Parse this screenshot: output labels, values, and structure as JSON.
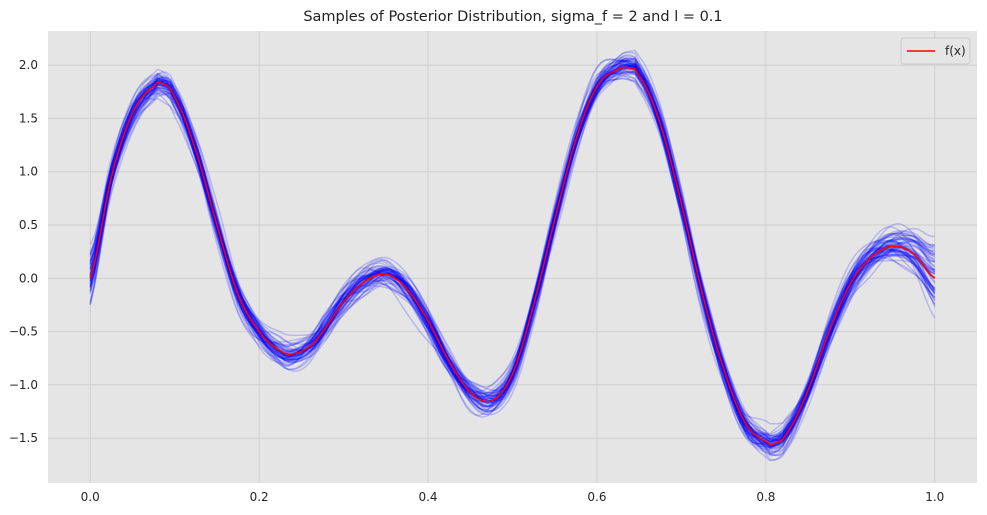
{
  "chart_data": {
    "type": "line",
    "title": "Samples of Posterior Distribution, sigma_f = 2 and l = 0.1",
    "xlabel": "",
    "ylabel": "",
    "xlim": [
      -0.05,
      1.05
    ],
    "ylim": [
      -1.92,
      2.32
    ],
    "xticks": [
      0.0,
      0.2,
      0.4,
      0.6,
      0.8,
      1.0
    ],
    "xtick_labels": [
      "0.0",
      "0.2",
      "0.4",
      "0.6",
      "0.8",
      "1.0"
    ],
    "yticks": [
      -1.5,
      -1.0,
      -0.5,
      0.0,
      0.5,
      1.0,
      1.5,
      2.0
    ],
    "ytick_labels": [
      "−1.5",
      "−1.0",
      "−0.5",
      "0.0",
      "0.5",
      "1.0",
      "1.5",
      "2.0"
    ],
    "grid": true,
    "legend": {
      "position": "top-right",
      "entries": [
        "f(x)"
      ]
    },
    "background": "#e5e5e5",
    "series": [
      {
        "name": "f(x)",
        "color": "#ff0000",
        "x": [
          0.0,
          0.025,
          0.05,
          0.075,
          0.085,
          0.1,
          0.125,
          0.15,
          0.175,
          0.2,
          0.225,
          0.24,
          0.26,
          0.275,
          0.3,
          0.325,
          0.35,
          0.375,
          0.4,
          0.425,
          0.45,
          0.475,
          0.5,
          0.525,
          0.55,
          0.575,
          0.6,
          0.625,
          0.64,
          0.65,
          0.675,
          0.7,
          0.725,
          0.75,
          0.775,
          0.8,
          0.81,
          0.825,
          0.85,
          0.875,
          0.9,
          0.925,
          0.95,
          0.975,
          1.0
        ],
        "values": [
          0.0,
          0.95,
          1.55,
          1.8,
          1.83,
          1.7,
          1.2,
          0.5,
          -0.15,
          -0.5,
          -0.68,
          -0.71,
          -0.64,
          -0.5,
          -0.22,
          -0.03,
          0.04,
          -0.1,
          -0.4,
          -0.78,
          -1.07,
          -1.15,
          -0.9,
          -0.25,
          0.55,
          1.3,
          1.8,
          1.96,
          1.97,
          1.9,
          1.45,
          0.7,
          -0.15,
          -0.85,
          -1.35,
          -1.53,
          -1.55,
          -1.45,
          -1.05,
          -0.5,
          -0.05,
          0.2,
          0.3,
          0.23,
          0.0
        ]
      }
    ],
    "samples": {
      "color": "#0000ff",
      "opacity": 0.2,
      "count": 60,
      "description_band_halfwidth": 0.1
    }
  }
}
